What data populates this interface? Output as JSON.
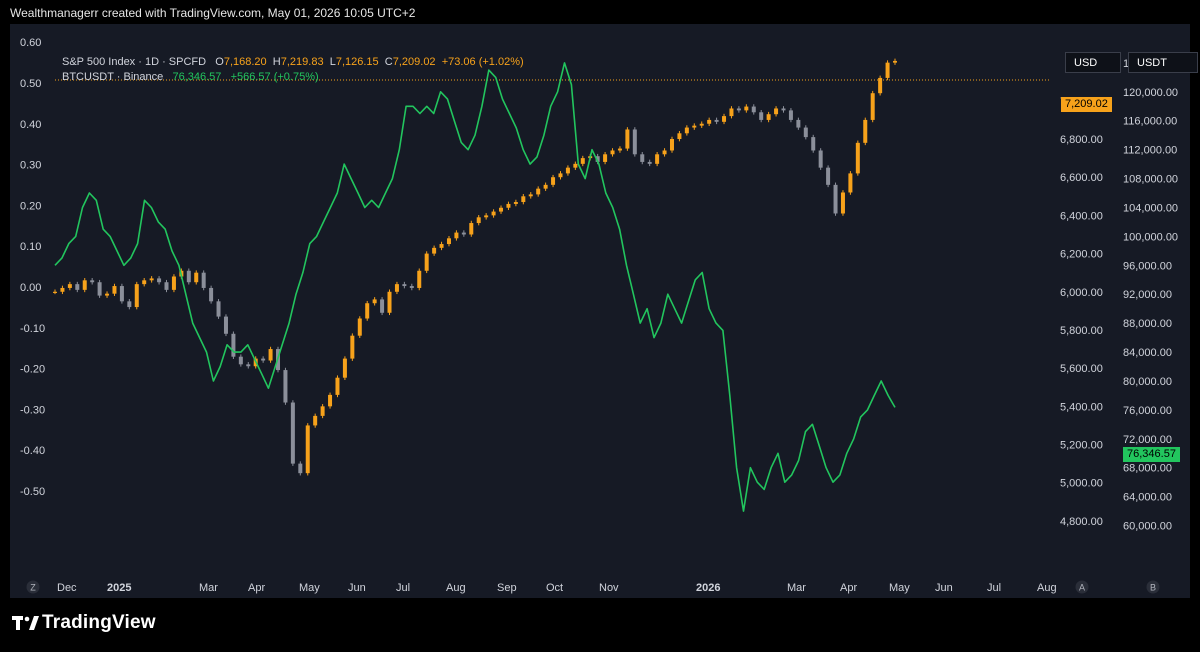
{
  "header": {
    "text": "Wealthmanagerr created with TradingView.com, May 01, 2026 10:05 UTC+2"
  },
  "legend": {
    "spx": {
      "name": "S&P 500 Index · 1D · SPCFD",
      "o_label": "O",
      "o": "7,168.20",
      "h_label": "H",
      "h": "7,219.83",
      "l_label": "L",
      "l": "7,126.15",
      "c_label": "C",
      "c": "7,209.02",
      "change": "+73.06 (+1.02%)"
    },
    "btc": {
      "name": "BTCUSDT · Binance",
      "price": "76,346.57",
      "change": "+566.57 (+0.75%)"
    }
  },
  "buttons": {
    "usd": "USD",
    "usdt": "USDT"
  },
  "badges": {
    "spx_last": "7,209.02",
    "btc_last": "76,346.57"
  },
  "footer": {
    "brand": "TradingView",
    "logo_icon": "tradingview-logo-icon"
  },
  "colors": {
    "background": "#161a25",
    "spx_up": "#f7a21b",
    "spx_down": "#8b8f9a",
    "btc_line": "#22c55e"
  },
  "chart_data": {
    "type": "line",
    "x_ticks": [
      "Dec",
      "2025",
      "Mar",
      "Apr",
      "May",
      "Jun",
      "Jul",
      "Aug",
      "Sep",
      "Oct",
      "Nov",
      "2026",
      "Mar",
      "Apr",
      "May",
      "Jun",
      "Jul",
      "Aug"
    ],
    "x_tick_bold": [
      "2025",
      "2026"
    ],
    "corner_labels": {
      "left": "Z",
      "right_a": "A",
      "right_b": "B"
    },
    "left_axis": {
      "ticks": [
        "0.60",
        "0.50",
        "0.40",
        "0.30",
        "0.20",
        "0.10",
        "0.00",
        "-0.10",
        "-0.20",
        "-0.30",
        "-0.40",
        "-0.50"
      ],
      "range": [
        -0.62,
        0.62
      ]
    },
    "spx_axis": {
      "ticks": [
        "7,000.00",
        "6,800.00",
        "6,600.00",
        "6,400.00",
        "6,200.00",
        "6,000.00",
        "5,800.00",
        "5,600.00",
        "5,400.00",
        "5,200.00",
        "5,000.00",
        "4,800.00"
      ],
      "range": [
        4700,
        7350
      ]
    },
    "btc_axis": {
      "ticks": [
        "124,000.00",
        "120,000.00",
        "116,000.00",
        "112,000.00",
        "108,000.00",
        "104,000.00",
        "100,000.00",
        "96,000.00",
        "92,000.00",
        "88,000.00",
        "84,000.00",
        "80,000.00",
        "76,000.00",
        "72,000.00",
        "68,000.00",
        "64,000.00",
        "60,000.00"
      ],
      "range": [
        58000,
        128000
      ]
    },
    "series": [
      {
        "name": "S&P 500 Index",
        "style": "candles",
        "date_range": [
          "2024-11-25",
          "2026-05-01"
        ],
        "close": [
          6000,
          6020,
          6040,
          6010,
          6060,
          6050,
          5980,
          5990,
          6030,
          5950,
          5920,
          6040,
          6060,
          6070,
          6050,
          6010,
          6080,
          6110,
          6050,
          6100,
          6020,
          5950,
          5870,
          5780,
          5660,
          5620,
          5610,
          5650,
          5640,
          5700,
          5590,
          5420,
          5100,
          5050,
          5300,
          5350,
          5400,
          5460,
          5550,
          5650,
          5770,
          5860,
          5940,
          5960,
          5890,
          6000,
          6040,
          6030,
          6020,
          6110,
          6200,
          6230,
          6250,
          6280,
          6310,
          6300,
          6360,
          6390,
          6400,
          6420,
          6440,
          6460,
          6470,
          6500,
          6510,
          6540,
          6560,
          6600,
          6620,
          6650,
          6670,
          6700,
          6710,
          6680,
          6720,
          6740,
          6750,
          6850,
          6720,
          6680,
          6670,
          6720,
          6740,
          6800,
          6830,
          6860,
          6870,
          6880,
          6900,
          6890,
          6920,
          6960,
          6950,
          6970,
          6940,
          6900,
          6930,
          6960,
          6950,
          6900,
          6860,
          6810,
          6740,
          6650,
          6560,
          6410,
          6520,
          6620,
          6780,
          6900,
          7040,
          7120,
          7200,
          7209
        ]
      },
      {
        "name": "BTCUSDT",
        "style": "line",
        "date_range": [
          "2024-11-25",
          "2026-05-01"
        ],
        "values": [
          96000,
          97000,
          99000,
          100000,
          104000,
          106000,
          105000,
          101000,
          100000,
          98000,
          96000,
          97000,
          99000,
          105000,
          104000,
          102000,
          101000,
          98000,
          96000,
          92000,
          88000,
          86000,
          84000,
          80000,
          82000,
          85000,
          84000,
          84000,
          85000,
          83000,
          81000,
          79000,
          82000,
          85000,
          88000,
          92000,
          95000,
          99000,
          100000,
          102000,
          104000,
          106000,
          110000,
          108000,
          106000,
          104000,
          105000,
          104000,
          106000,
          108000,
          112000,
          118000,
          118000,
          117000,
          118000,
          117000,
          120000,
          119000,
          116000,
          113000,
          112000,
          114000,
          118000,
          123000,
          122000,
          119000,
          117000,
          115000,
          112000,
          110000,
          111000,
          114000,
          118000,
          120000,
          124000,
          121000,
          110000,
          108000,
          112000,
          110000,
          106000,
          104000,
          101000,
          96000,
          92000,
          88000,
          90000,
          86000,
          88000,
          92000,
          90000,
          88000,
          91000,
          94000,
          95000,
          90000,
          88000,
          87000,
          78000,
          68000,
          62000,
          68000,
          66000,
          65000,
          68000,
          70000,
          66000,
          67000,
          69000,
          73000,
          74000,
          71000,
          68000,
          66000,
          67000,
          70000,
          72000,
          75000,
          76000,
          78000,
          80000,
          78000,
          76347
        ]
      }
    ]
  }
}
